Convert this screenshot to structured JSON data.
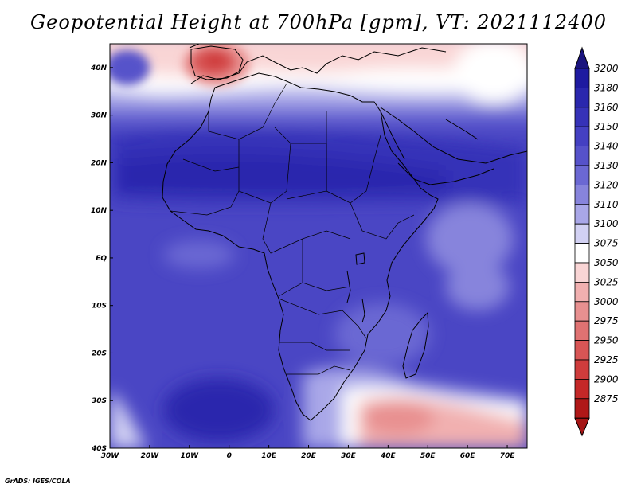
{
  "title": "Geopotential Height at 700hPa [gpm], VT: 2021112400",
  "credit": "GrADS: IGES/COLA",
  "map": {
    "lon_range": [
      -30,
      75
    ],
    "lat_range": [
      -40,
      45
    ],
    "lon_ticks": [
      {
        "value": -30,
        "label": "30W"
      },
      {
        "value": -20,
        "label": "20W"
      },
      {
        "value": -10,
        "label": "10W"
      },
      {
        "value": 0,
        "label": "0"
      },
      {
        "value": 10,
        "label": "10E"
      },
      {
        "value": 20,
        "label": "20E"
      },
      {
        "value": 30,
        "label": "30E"
      },
      {
        "value": 40,
        "label": "40E"
      },
      {
        "value": 50,
        "label": "50E"
      },
      {
        "value": 60,
        "label": "60E"
      },
      {
        "value": 70,
        "label": "70E"
      }
    ],
    "lat_ticks": [
      {
        "value": 40,
        "label": "40N"
      },
      {
        "value": 30,
        "label": "30N"
      },
      {
        "value": 20,
        "label": "20N"
      },
      {
        "value": 10,
        "label": "10N"
      },
      {
        "value": 0,
        "label": "EQ"
      },
      {
        "value": -10,
        "label": "10S"
      },
      {
        "value": -20,
        "label": "20S"
      },
      {
        "value": -30,
        "label": "30S"
      },
      {
        "value": -40,
        "label": "40S"
      }
    ]
  },
  "colorbar": {
    "levels": [
      {
        "label": "3200",
        "color": "#1e1aa0"
      },
      {
        "label": "3180",
        "color": "#2a27ad"
      },
      {
        "label": "3160",
        "color": "#3632b8"
      },
      {
        "label": "3150",
        "color": "#4440c2"
      },
      {
        "label": "3140",
        "color": "#5652ca"
      },
      {
        "label": "3130",
        "color": "#6b68d3"
      },
      {
        "label": "3120",
        "color": "#8784dc"
      },
      {
        "label": "3110",
        "color": "#a9a7e8"
      },
      {
        "label": "3100",
        "color": "#d2d1f3"
      },
      {
        "label": "3075",
        "color": "#ffffff"
      },
      {
        "label": "3050",
        "color": "#f9d5d5"
      },
      {
        "label": "3025",
        "color": "#f1b0b0"
      },
      {
        "label": "3000",
        "color": "#e89090"
      },
      {
        "label": "2975",
        "color": "#e07272"
      },
      {
        "label": "2950",
        "color": "#d85555"
      },
      {
        "label": "2925",
        "color": "#cf3c3c"
      },
      {
        "label": "2900",
        "color": "#c42828"
      },
      {
        "label": "2875",
        "color": "#b01818"
      }
    ],
    "top_arrow_color": "#1a147e",
    "bottom_arrow_color": "#a51515"
  }
}
